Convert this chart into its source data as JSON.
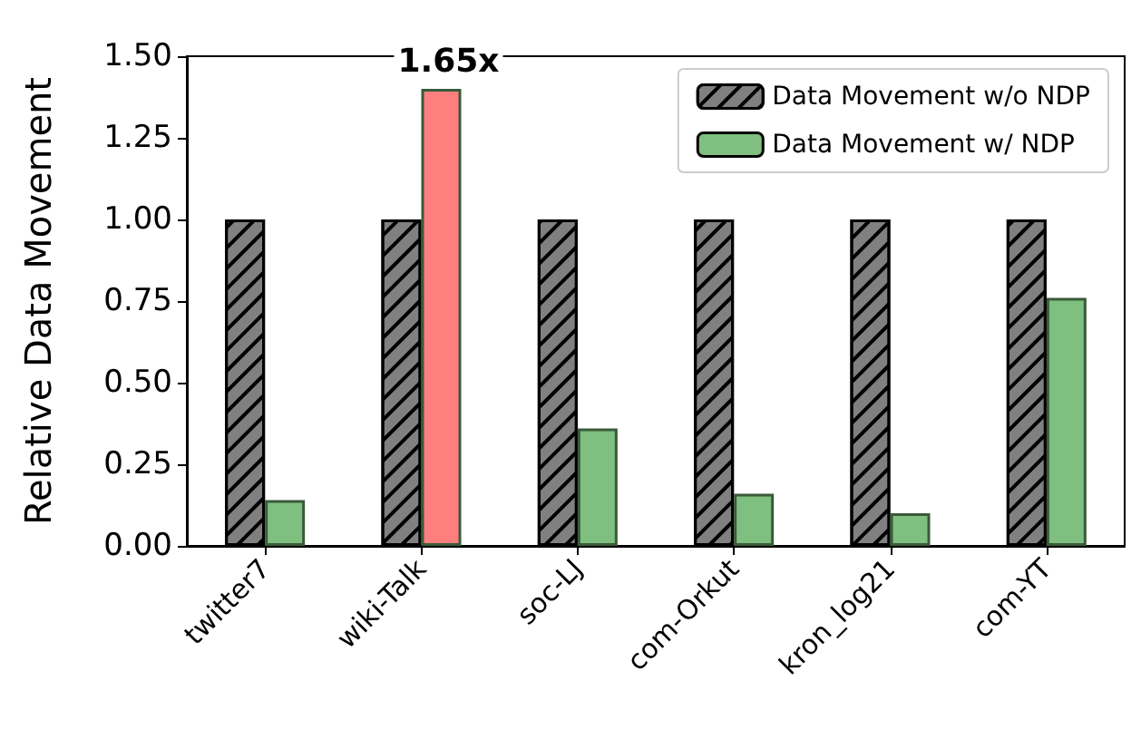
{
  "chart_data": {
    "type": "bar",
    "ylabel": "Relative Data Movement",
    "categories": [
      "twitter7",
      "wiki-Talk",
      "soc-LJ",
      "com-Orkut",
      "kron_log21",
      "com-YT"
    ],
    "series": [
      {
        "name": "Data Movement w/o NDP",
        "color": "#808080",
        "values": [
          1.0,
          1.0,
          1.0,
          1.0,
          1.0,
          1.0
        ]
      },
      {
        "name": "Data Movement w/ NDP",
        "color": "#7fbf7f",
        "colors": [
          "#7fbf7f",
          "#ff7f7f",
          "#7fbf7f",
          "#7fbf7f",
          "#7fbf7f",
          "#7fbf7f"
        ],
        "values": [
          0.14,
          1.4,
          0.36,
          0.16,
          0.1,
          0.76
        ]
      }
    ],
    "annotations": [
      {
        "text": "1.65x",
        "x": "wiki-Talk",
        "y": 1.4
      }
    ],
    "ylim": [
      0,
      1.5
    ],
    "yticks": [
      {
        "value": 0,
        "label": "0.00"
      },
      0.25,
      {
        "value": 0.5,
        "label": "0.50"
      },
      0.75,
      {
        "value": 1,
        "label": "1.00"
      },
      1.25,
      {
        "value": 1.5,
        "label": "1.50"
      }
    ],
    "grid": false,
    "legend": "top right"
  }
}
